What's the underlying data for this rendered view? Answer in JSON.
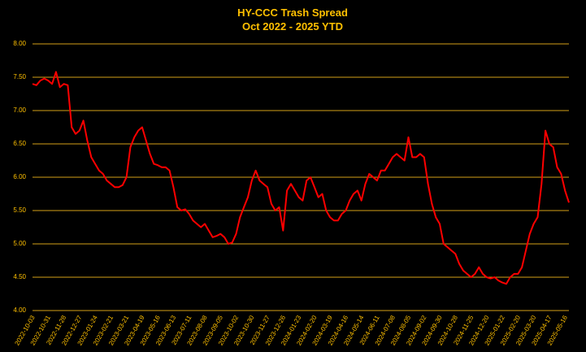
{
  "chart_data": {
    "type": "line",
    "title": "HY-CCC Trash Spread",
    "subtitle": "Oct 2022 - 2025 YTD",
    "categories": [
      "2022-10-03",
      null,
      null,
      null,
      "2022-10-31",
      null,
      null,
      null,
      "2022-11-28",
      null,
      null,
      null,
      "2022-12-27",
      null,
      null,
      null,
      "2023-01-24",
      null,
      null,
      null,
      "2023-02-21",
      null,
      null,
      null,
      "2023-03-21",
      null,
      null,
      null,
      "2023-04-19",
      null,
      null,
      null,
      "2023-05-16",
      null,
      null,
      null,
      "2023-06-13",
      null,
      null,
      null,
      "2023-07-11",
      null,
      null,
      null,
      "2023-08-08",
      null,
      null,
      null,
      "2023-09-05",
      null,
      null,
      null,
      "2023-10-02",
      null,
      null,
      null,
      "2023-10-30",
      null,
      null,
      null,
      "2023-11-27",
      null,
      null,
      null,
      "2023-12-26",
      null,
      null,
      null,
      "2024-01-23",
      null,
      null,
      null,
      "2024-02-20",
      null,
      null,
      null,
      "2024-03-19",
      null,
      null,
      null,
      "2024-04-16",
      null,
      null,
      null,
      "2024-05-14",
      null,
      null,
      null,
      "2024-06-11",
      null,
      null,
      null,
      "2024-07-08",
      null,
      null,
      null,
      "2024-08-05",
      null,
      null,
      null,
      "2024-09-02",
      null,
      null,
      null,
      "2024-09-30",
      null,
      null,
      null,
      "2024-10-28",
      null,
      null,
      null,
      "2024-11-25",
      null,
      null,
      null,
      "2024-12-20",
      null,
      null,
      null,
      "2025-01-22",
      null,
      null,
      null,
      "2025-02-20",
      null,
      null,
      null,
      "2025-03-20",
      null,
      null,
      null,
      "2025-04-17",
      null,
      null,
      null,
      "2025-05-16",
      null
    ],
    "series": [
      {
        "name": "HY-CCC Trash Spread",
        "color": "#ff0000",
        "values": [
          7.4,
          7.38,
          7.45,
          7.48,
          7.45,
          7.4,
          7.58,
          7.35,
          7.4,
          7.38,
          6.75,
          6.65,
          6.7,
          6.85,
          6.55,
          6.3,
          6.2,
          6.1,
          6.05,
          5.95,
          5.9,
          5.85,
          5.85,
          5.88,
          6.0,
          6.45,
          6.6,
          6.7,
          6.75,
          6.55,
          6.35,
          6.2,
          6.18,
          6.15,
          6.15,
          6.1,
          5.85,
          5.55,
          5.5,
          5.52,
          5.45,
          5.35,
          5.3,
          5.25,
          5.3,
          5.2,
          5.1,
          5.12,
          5.15,
          5.1,
          5.0,
          5.02,
          5.15,
          5.4,
          5.55,
          5.7,
          5.95,
          6.1,
          5.95,
          5.9,
          5.85,
          5.6,
          5.5,
          5.55,
          5.2,
          5.8,
          5.9,
          5.8,
          5.7,
          5.65,
          5.95,
          6.0,
          5.85,
          5.7,
          5.75,
          5.5,
          5.4,
          5.35,
          5.35,
          5.45,
          5.5,
          5.65,
          5.75,
          5.8,
          5.65,
          5.9,
          6.05,
          6.0,
          5.95,
          6.1,
          6.1,
          6.2,
          6.3,
          6.35,
          6.3,
          6.25,
          6.6,
          6.3,
          6.3,
          6.35,
          6.3,
          5.9,
          5.6,
          5.4,
          5.3,
          5.0,
          4.95,
          4.9,
          4.85,
          4.7,
          4.6,
          4.55,
          4.5,
          4.55,
          4.65,
          4.55,
          4.5,
          4.48,
          4.5,
          4.45,
          4.42,
          4.4,
          4.5,
          4.55,
          4.55,
          4.65,
          4.9,
          5.15,
          5.3,
          5.4,
          5.9,
          6.7,
          6.5,
          6.45,
          6.15,
          6.05,
          5.8,
          5.62
        ]
      }
    ],
    "ylim": [
      4,
      8
    ],
    "yticks": [
      {
        "value": 4,
        "label": "4.00"
      },
      {
        "value": 4.5,
        "label": "4.50"
      },
      {
        "value": 5,
        "label": "5.00"
      },
      {
        "value": 5.5,
        "label": "5.50"
      },
      {
        "value": 6,
        "label": "6.00"
      },
      {
        "value": 6.5,
        "label": "6.50"
      },
      {
        "value": 7,
        "label": "7.00"
      },
      {
        "value": 7.5,
        "label": "7.50"
      },
      {
        "value": 8,
        "label": "8.00"
      }
    ],
    "grid": true
  }
}
